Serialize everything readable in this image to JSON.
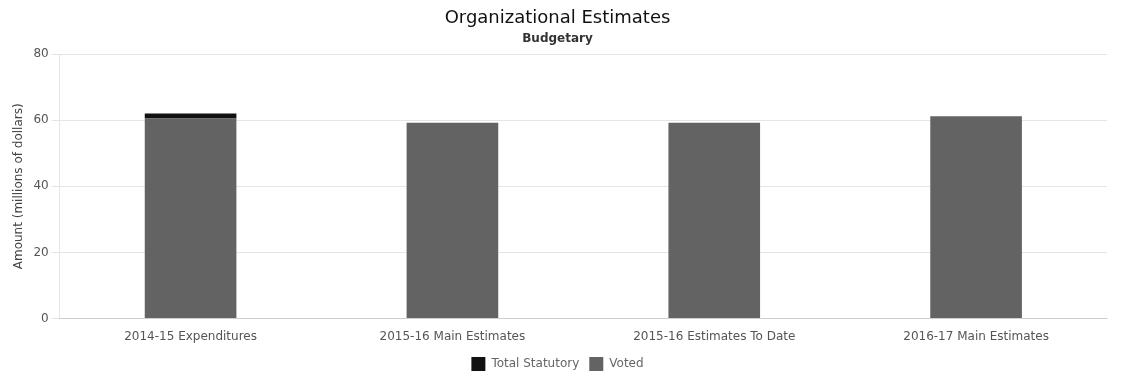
{
  "chart_data": {
    "type": "bar",
    "title": "Organizational Estimates",
    "subtitle": "Budgetary",
    "ylabel": "Amount (millions of dollars)",
    "categories": [
      "2014-15 Expenditures",
      "2015-16 Main Estimates",
      "2015-16 Estimates To Date",
      "2016-17 Main Estimates"
    ],
    "series": [
      {
        "name": "Voted",
        "color": "#636363",
        "values": [
          60.5,
          59.2,
          59.2,
          61.2
        ]
      },
      {
        "name": "Total Statutory",
        "color": "#111111",
        "values": [
          1.5,
          0.0,
          0.0,
          0.0
        ]
      }
    ],
    "stacked": true,
    "ylim": [
      0,
      80
    ],
    "yticks": [
      0,
      20,
      40,
      60,
      80
    ],
    "grid": true,
    "legend": "bottom"
  }
}
